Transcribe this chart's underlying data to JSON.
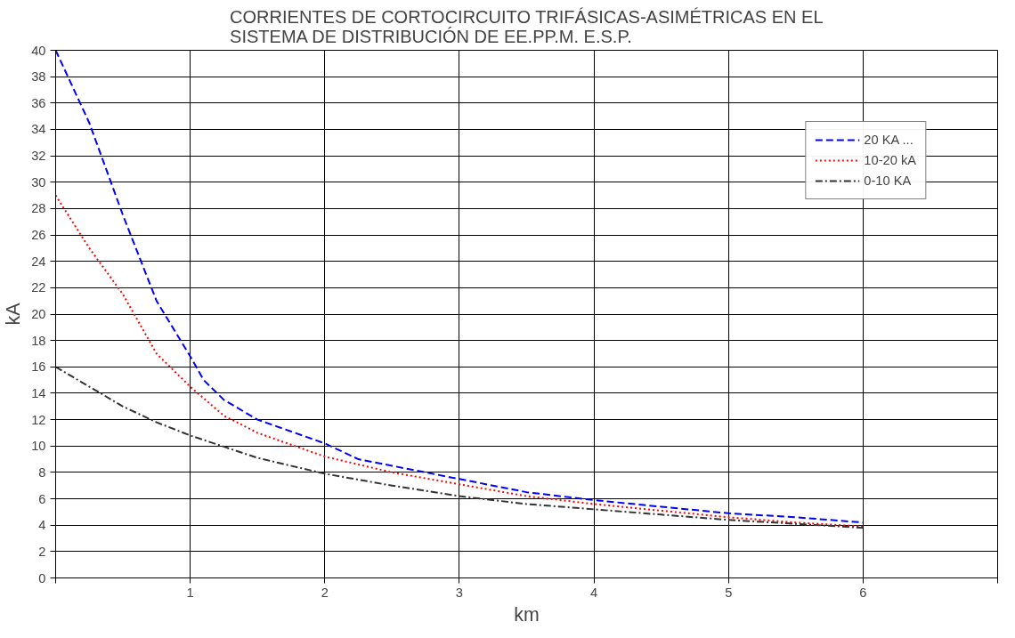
{
  "chart_data": {
    "type": "line",
    "title": "CORRIENTES DE CORTOCIRCUITO TRIFÁSICAS-ASIMÉTRICAS EN EL\nSISTEMA DE DISTRIBUCIÓN DE EE.PP.M. E.S.P.",
    "xlabel": "km",
    "ylabel": "kA",
    "xlim": [
      0,
      7
    ],
    "xticks": [
      {
        "value": 0,
        "label": null
      },
      1,
      2,
      3,
      4,
      5,
      6,
      {
        "value": 7,
        "label": null
      }
    ],
    "ylim": [
      0,
      40
    ],
    "yticks": [
      0,
      2,
      4,
      6,
      8,
      10,
      12,
      14,
      16,
      18,
      20,
      22,
      24,
      26,
      28,
      30,
      32,
      34,
      36,
      38,
      40
    ],
    "grid": true,
    "legend": "top right",
    "marker": "none",
    "series": [
      {
        "name": "20 KA ...",
        "color": "#0000ff",
        "line_style": "dashed",
        "x": [
          0,
          0.25,
          0.5,
          0.75,
          1,
          1.1,
          1.25,
          1.5,
          2,
          2.25,
          2.5,
          3,
          3.5,
          4,
          4.5,
          5,
          5.5,
          6
        ],
        "values": [
          40,
          34.5,
          27.5,
          21,
          16.8,
          15,
          13.5,
          12,
          10.2,
          9,
          8.5,
          7.5,
          6.5,
          5.9,
          5.4,
          4.9,
          4.6,
          4.2
        ]
      },
      {
        "name": "10-20 kA",
        "color": "#ff0000",
        "line_style": "dotted",
        "x": [
          0,
          0.25,
          0.5,
          0.75,
          0.9,
          1,
          1.25,
          1.5,
          2,
          2.5,
          3,
          3.5,
          4,
          4.5,
          5,
          5.5,
          6
        ],
        "values": [
          29,
          25,
          21.5,
          17,
          15.5,
          14.5,
          12.3,
          11,
          9.2,
          8,
          7.1,
          6.2,
          5.6,
          5.1,
          4.6,
          4.2,
          3.9
        ]
      },
      {
        "name": "0-10 KA",
        "color": "#333333",
        "line_style": "dashdot",
        "x": [
          0,
          0.5,
          0.75,
          1,
          1.5,
          2,
          2.5,
          3,
          3.5,
          4,
          4.5,
          5,
          5.5,
          6
        ],
        "values": [
          16,
          13,
          11.8,
          10.8,
          9.1,
          7.9,
          7,
          6.2,
          5.6,
          5.2,
          4.8,
          4.4,
          4.1,
          3.8
        ]
      }
    ]
  }
}
